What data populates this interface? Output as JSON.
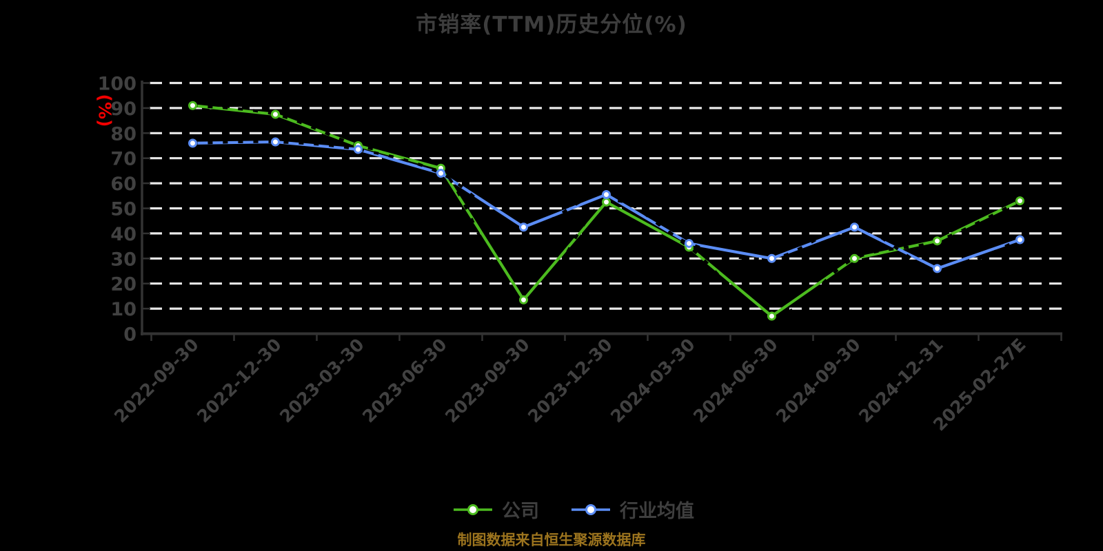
{
  "title": "市销率(TTM)历史分位(%)",
  "y_axis_unit_label": "(%)",
  "footer_note": "制图数据来自恒生聚源数据库",
  "legend": {
    "company_label": "公司",
    "industry_label": "行业均值"
  },
  "colors": {
    "background": "#000000",
    "title_text": "#3d3d3d",
    "axis_line": "#333333",
    "tick_label": "#414141",
    "gridline": "#e9e9e9",
    "company_series": "#4cbb1f",
    "industry_series": "#5b8df5",
    "unit_label_red": "#f20000",
    "footer_gold": "#9c741e",
    "marker_fill": "#ffffff",
    "dashed_overlay": "#000000"
  },
  "chart_data": {
    "type": "line",
    "title": "市销率(TTM)历史分位(%)",
    "xlabel": "",
    "ylabel": "(%)",
    "ylim": [
      0,
      100
    ],
    "yticks": [
      0,
      10,
      20,
      30,
      40,
      50,
      60,
      70,
      80,
      90,
      100
    ],
    "grid": "horizontal white dashed lines",
    "legend_position": "bottom-center",
    "categories": [
      "2022-09-30",
      "2022-12-30",
      "2023-03-30",
      "2023-06-30",
      "2023-09-30",
      "2023-12-30",
      "2024-03-30",
      "2024-06-30",
      "2024-09-30",
      "2024-12-31",
      "2025-02-27E"
    ],
    "series": [
      {
        "name": "公司",
        "color": "#4cbb1f",
        "values": [
          91,
          87.5,
          75,
          66,
          13.5,
          52.5,
          34.5,
          7,
          30,
          37,
          53
        ]
      },
      {
        "name": "行业均值",
        "color": "#5b8df5",
        "values": [
          76,
          76.5,
          73.5,
          64,
          42.5,
          55.5,
          36,
          30,
          42.5,
          26,
          37.5
        ]
      }
    ]
  }
}
